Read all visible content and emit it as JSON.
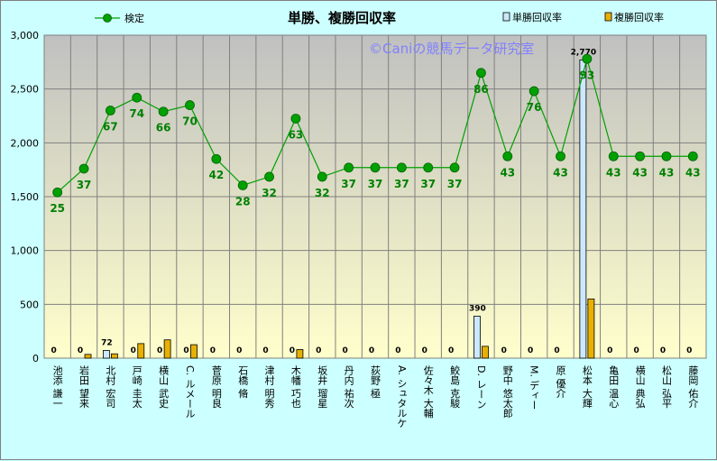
{
  "chart_data": {
    "type": "bar+line",
    "title": "単勝、複勝回収率",
    "watermark": "©Caniの競馬データ研究室",
    "ylim": [
      0,
      3000
    ],
    "yticks": [
      "0",
      "500",
      "1,000",
      "1,500",
      "2,000",
      "2,500",
      "3,000"
    ],
    "grid": true,
    "legend_placement": "top",
    "colors": {
      "line": "#00a000",
      "win_bar": "#cce8ff",
      "place_bar": "#e8b000",
      "plot_top": "#c0c0c0",
      "plot_bottom": "#ffffcc"
    },
    "categories": [
      "池添 謙一",
      "岩田 望来",
      "北村 宏司",
      "戸崎 圭太",
      "横山 武史",
      "C. ルメール",
      "菅原 明良",
      "石橋 脩",
      "津村 明秀",
      "木幡 巧也",
      "坂井 瑠星",
      "丹内 祐次",
      "荻野 極",
      "A. シュタルケ",
      "佐々木 大輔",
      "鮫島 克駿",
      "D. レーン",
      "野中 悠太郎",
      "M. ディー",
      "原 優介",
      "松本 大輝",
      "亀田 温心",
      "横山 典弘",
      "松山 弘平",
      "藤岡 佑介"
    ],
    "series": [
      {
        "name": "単勝回収率",
        "kind": "bar",
        "values": [
          0,
          0,
          72,
          0,
          0,
          0,
          0,
          0,
          0,
          0,
          0,
          0,
          0,
          0,
          0,
          0,
          390,
          0,
          0,
          0,
          2770,
          0,
          0,
          0,
          0
        ],
        "labels": [
          "0",
          "0",
          "72",
          "0",
          "0",
          "0",
          "0",
          "0",
          "0",
          "0",
          "0",
          "0",
          "0",
          "0",
          "0",
          "0",
          "390",
          "0",
          "0",
          "0",
          "2,770",
          "0",
          "0",
          "0",
          "0"
        ]
      },
      {
        "name": "複勝回収率",
        "kind": "bar",
        "values": [
          0,
          35,
          40,
          135,
          170,
          125,
          0,
          0,
          0,
          80,
          0,
          0,
          0,
          0,
          0,
          0,
          110,
          0,
          0,
          0,
          550,
          0,
          0,
          0,
          0
        ]
      },
      {
        "name": "検定",
        "kind": "line",
        "values": [
          1540,
          1760,
          2300,
          2420,
          2290,
          2350,
          1850,
          1605,
          1685,
          2225,
          1685,
          1770,
          1770,
          1770,
          1770,
          1770,
          2650,
          1875,
          2480,
          1875,
          2780,
          1875,
          1875,
          1875,
          1875
        ],
        "labels": [
          "25",
          "37",
          "67",
          "74",
          "66",
          "70",
          "42",
          "28",
          "32",
          "63",
          "32",
          "37",
          "37",
          "37",
          "37",
          "37",
          "86",
          "43",
          "76",
          "43",
          "93",
          "43",
          "43",
          "43",
          "43"
        ]
      }
    ]
  }
}
